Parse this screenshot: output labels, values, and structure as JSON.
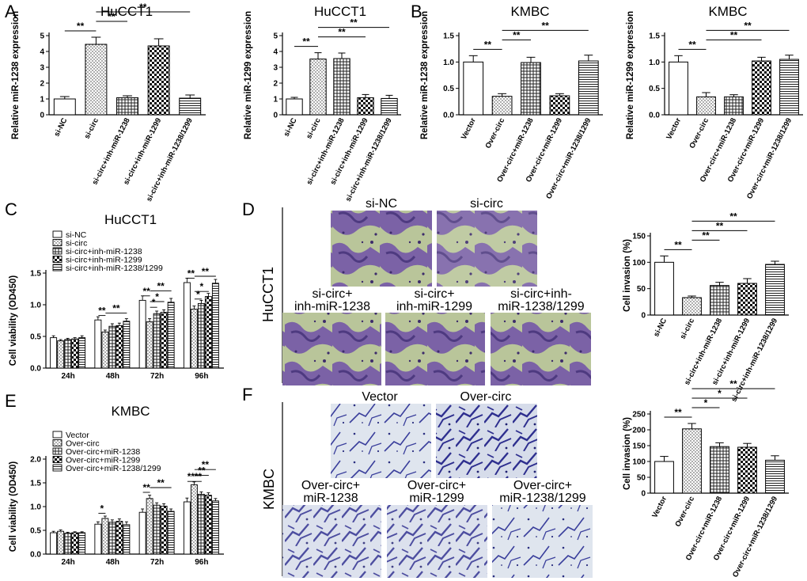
{
  "panels": {
    "A": "A",
    "B": "B",
    "C": "C",
    "D": "D",
    "E": "E",
    "F": "F"
  },
  "micro_D": {
    "row_label": "HuCCT1",
    "images": [
      {
        "label_lines": [
          "si-NC"
        ]
      },
      {
        "label_lines": [
          "si-circ"
        ]
      },
      {
        "label_lines": [
          "si-circ+",
          "inh-miR-1238"
        ]
      },
      {
        "label_lines": [
          "si-circ+",
          "inh-miR-1299"
        ]
      },
      {
        "label_lines": [
          "si-circ+inh-",
          "miR-1238/1299"
        ]
      }
    ]
  },
  "micro_F": {
    "row_label": "KMBC",
    "images": [
      {
        "label_lines": [
          "Vector"
        ]
      },
      {
        "label_lines": [
          "Over-circ"
        ]
      },
      {
        "label_lines": [
          "Over-circ+",
          "miR-1238"
        ]
      },
      {
        "label_lines": [
          "Over-circ+",
          "miR-1299"
        ]
      },
      {
        "label_lines": [
          "Over-circ+",
          "miR-1238/1299"
        ]
      }
    ]
  },
  "chart_data": [
    {
      "id": "A1",
      "type": "bar",
      "title": "HuCCT1",
      "ylabel": "Relative miR-1238 expression",
      "ylim": [
        0,
        5
      ],
      "yticks": [
        0,
        1,
        2,
        3,
        4,
        5
      ],
      "categories": [
        "si-NC",
        "si-circ",
        "si-circ+inh-miR-1238",
        "si-circ+inh-miR-1299",
        "si-circ+inh-miR-1238/1299"
      ],
      "values": [
        1.0,
        4.45,
        1.08,
        4.35,
        1.05
      ],
      "errors": [
        0.15,
        0.45,
        0.12,
        0.45,
        0.2
      ],
      "patterns": [
        "white",
        "dots",
        "grid",
        "check",
        "hlines"
      ],
      "annotations": [
        {
          "from": 0,
          "to": 1,
          "label": "**"
        },
        {
          "from": 1,
          "to": 2,
          "label": "**"
        },
        {
          "from": 1,
          "to": 4,
          "label": "**"
        }
      ]
    },
    {
      "id": "A2",
      "type": "bar",
      "title": "HuCCT1",
      "ylabel": "Relative miR-1299 expression",
      "ylim": [
        0,
        5
      ],
      "yticks": [
        0,
        1,
        2,
        3,
        4,
        5
      ],
      "categories": [
        "si-NC",
        "si-circ",
        "si-circ+inh-miR-1238",
        "si-circ+inh-miR-1299",
        "si-circ+inh-miR-1238/1299"
      ],
      "values": [
        1.0,
        3.52,
        3.55,
        1.08,
        1.03
      ],
      "errors": [
        0.1,
        0.4,
        0.35,
        0.2,
        0.2
      ],
      "patterns": [
        "white",
        "dots",
        "grid",
        "check",
        "hlines"
      ],
      "annotations": [
        {
          "from": 0,
          "to": 1,
          "label": "**"
        },
        {
          "from": 1,
          "to": 3,
          "label": "**"
        },
        {
          "from": 1,
          "to": 4,
          "label": "**"
        }
      ]
    },
    {
      "id": "B1",
      "type": "bar",
      "title": "KMBC",
      "ylabel": "Relative miR-1238 expression",
      "ylim": [
        0,
        1.5
      ],
      "yticks": [
        0,
        0.5,
        1.0,
        1.5
      ],
      "categories": [
        "Vector",
        "Over-circ",
        "Over-circ+miR-1238",
        "Over-circ+miR-1299",
        "Over-circ+miR-1238/1299"
      ],
      "values": [
        1.0,
        0.35,
        0.99,
        0.36,
        1.02
      ],
      "errors": [
        0.12,
        0.05,
        0.1,
        0.04,
        0.11
      ],
      "patterns": [
        "white",
        "dots",
        "grid",
        "check",
        "hlines"
      ],
      "annotations": [
        {
          "from": 0,
          "to": 1,
          "label": "**"
        },
        {
          "from": 1,
          "to": 2,
          "label": "**"
        },
        {
          "from": 1,
          "to": 4,
          "label": "**"
        }
      ]
    },
    {
      "id": "B2",
      "type": "bar",
      "title": "KMBC",
      "ylabel": "Relative miR-1299 expression",
      "ylim": [
        0,
        1.5
      ],
      "yticks": [
        0,
        0.5,
        1.0,
        1.5
      ],
      "categories": [
        "Vector",
        "Over-circ",
        "Over-circ+miR-1238",
        "Over-circ+miR-1299",
        "Over-circ+miR-1238/1299"
      ],
      "values": [
        1.0,
        0.34,
        0.34,
        1.02,
        1.05
      ],
      "errors": [
        0.12,
        0.08,
        0.04,
        0.07,
        0.08
      ],
      "patterns": [
        "white",
        "dots",
        "grid",
        "check",
        "hlines"
      ],
      "annotations": [
        {
          "from": 0,
          "to": 1,
          "label": "**"
        },
        {
          "from": 1,
          "to": 3,
          "label": "**"
        },
        {
          "from": 1,
          "to": 4,
          "label": "**"
        }
      ]
    },
    {
      "id": "C",
      "type": "bar",
      "title": "HuCCT1",
      "ylabel": "Cell viability (OD450)",
      "ylim": [
        0,
        1.5
      ],
      "yticks": [
        0,
        0.5,
        1.0,
        1.5
      ],
      "categories": [
        "24h",
        "48h",
        "72h",
        "96h"
      ],
      "series": [
        {
          "name": "si-NC",
          "pattern": "white",
          "values": [
            0.48,
            0.76,
            1.07,
            1.35
          ],
          "errors": [
            0.03,
            0.05,
            0.07,
            0.07
          ]
        },
        {
          "name": "si-circ",
          "pattern": "dots",
          "values": [
            0.43,
            0.57,
            0.73,
            0.93
          ],
          "errors": [
            0.02,
            0.03,
            0.05,
            0.05
          ]
        },
        {
          "name": "si-circ+inh-miR-1238",
          "pattern": "grid",
          "values": [
            0.45,
            0.66,
            0.86,
            1.02
          ],
          "errors": [
            0.02,
            0.04,
            0.04,
            0.05
          ]
        },
        {
          "name": "si-circ+inh-miR-1299",
          "pattern": "check",
          "values": [
            0.46,
            0.67,
            0.88,
            1.13
          ],
          "errors": [
            0.02,
            0.04,
            0.04,
            0.05
          ]
        },
        {
          "name": "si-circ+inh-miR-1238/1299",
          "pattern": "hlines",
          "values": [
            0.48,
            0.74,
            1.04,
            1.34
          ],
          "errors": [
            0.03,
            0.04,
            0.06,
            0.06
          ]
        }
      ],
      "annotations": [
        {
          "group": 1,
          "from": 0,
          "to": 1,
          "label": "**",
          "y": 0.83
        },
        {
          "group": 1,
          "from": 1,
          "to": 4,
          "label": "**",
          "y": 0.87
        },
        {
          "group": 2,
          "from": 0,
          "to": 1,
          "label": "**",
          "y": 1.14
        },
        {
          "group": 2,
          "from": 1,
          "to": 2,
          "label": "*",
          "y": 0.96
        },
        {
          "group": 2,
          "from": 1,
          "to": 3,
          "label": "*",
          "y": 1.05
        },
        {
          "group": 2,
          "from": 1,
          "to": 4,
          "label": "**",
          "y": 1.22
        },
        {
          "group": 3,
          "from": 0,
          "to": 1,
          "label": "**",
          "y": 1.42
        },
        {
          "group": 3,
          "from": 1,
          "to": 2,
          "label": "*",
          "y": 1.09
        },
        {
          "group": 3,
          "from": 1,
          "to": 3,
          "label": "*",
          "y": 1.21
        },
        {
          "group": 3,
          "from": 1,
          "to": 4,
          "label": "**",
          "y": 1.45
        }
      ],
      "legend": "top-left"
    },
    {
      "id": "D",
      "type": "bar",
      "title": "",
      "ylabel": "Cell invasion (%)",
      "ylim": [
        0,
        150
      ],
      "yticks": [
        0,
        50,
        100,
        150
      ],
      "categories": [
        "si-NC",
        "si-circ",
        "si-circ+inh-miR-1238",
        "si-circ+inh-miR-1299",
        "si-circ+inh-miR-1238/1299"
      ],
      "values": [
        100,
        33,
        56,
        60,
        96
      ],
      "errors": [
        12,
        3,
        6,
        9,
        6
      ],
      "patterns": [
        "white",
        "dots",
        "grid",
        "check",
        "hlines"
      ],
      "annotations": [
        {
          "from": 0,
          "to": 1,
          "label": "**"
        },
        {
          "from": 1,
          "to": 2,
          "label": "**"
        },
        {
          "from": 1,
          "to": 3,
          "label": "**"
        },
        {
          "from": 1,
          "to": 4,
          "label": "**"
        }
      ]
    },
    {
      "id": "E",
      "type": "bar",
      "title": "KMBC",
      "ylabel": "Cell viability (OD450)",
      "ylim": [
        0,
        2.0
      ],
      "yticks": [
        0,
        0.5,
        1.0,
        1.5,
        2.0
      ],
      "categories": [
        "24h",
        "48h",
        "72h",
        "96h"
      ],
      "series": [
        {
          "name": "Vector",
          "pattern": "white",
          "values": [
            0.45,
            0.63,
            0.88,
            1.1
          ],
          "errors": [
            0.03,
            0.05,
            0.07,
            0.08
          ]
        },
        {
          "name": "Over-circ",
          "pattern": "dots",
          "values": [
            0.48,
            0.75,
            1.17,
            1.46
          ],
          "errors": [
            0.03,
            0.05,
            0.07,
            0.06
          ]
        },
        {
          "name": "Over-circ+miR-1238",
          "pattern": "grid",
          "values": [
            0.44,
            0.67,
            1.03,
            1.26
          ],
          "errors": [
            0.02,
            0.05,
            0.05,
            0.05
          ]
        },
        {
          "name": "Over-circ+miR-1299",
          "pattern": "check",
          "values": [
            0.45,
            0.69,
            1.01,
            1.24
          ],
          "errors": [
            0.02,
            0.05,
            0.05,
            0.05
          ]
        },
        {
          "name": "Over-circ+miR-1238/1299",
          "pattern": "hlines",
          "values": [
            0.45,
            0.62,
            0.9,
            1.12
          ],
          "errors": [
            0.02,
            0.06,
            0.05,
            0.05
          ]
        }
      ],
      "annotations": [
        {
          "group": 1,
          "from": 0,
          "to": 1,
          "label": "*",
          "y": 0.86
        },
        {
          "group": 2,
          "from": 0,
          "to": 1,
          "label": "**",
          "y": 1.3
        },
        {
          "group": 2,
          "from": 1,
          "to": 4,
          "label": "**",
          "y": 1.4
        },
        {
          "group": 3,
          "from": 0,
          "to": 1,
          "label": "**",
          "y": 1.53
        },
        {
          "group": 3,
          "from": 1,
          "to": 2,
          "label": "**",
          "y": 1.53
        },
        {
          "group": 3,
          "from": 1,
          "to": 3,
          "label": "**",
          "y": 1.66
        },
        {
          "group": 3,
          "from": 1,
          "to": 4,
          "label": "**",
          "y": 1.78
        }
      ],
      "legend": "top-left"
    },
    {
      "id": "F",
      "type": "bar",
      "title": "",
      "ylabel": "Cell invasion (%)",
      "ylim": [
        0,
        250
      ],
      "yticks": [
        0,
        50,
        100,
        150,
        200,
        250
      ],
      "categories": [
        "Vector",
        "Over-circ",
        "Over-circ+miR-1238",
        "Over-circ+miR-1299",
        "Over-circ+miR-1238/1299"
      ],
      "values": [
        100,
        203,
        147,
        145,
        104
      ],
      "errors": [
        16,
        17,
        12,
        12,
        14
      ],
      "patterns": [
        "white",
        "dots",
        "grid",
        "check",
        "hlines"
      ],
      "annotations": [
        {
          "from": 0,
          "to": 1,
          "label": "**"
        },
        {
          "from": 1,
          "to": 2,
          "label": "*"
        },
        {
          "from": 1,
          "to": 3,
          "label": "*"
        },
        {
          "from": 1,
          "to": 4,
          "label": "**"
        }
      ]
    }
  ]
}
